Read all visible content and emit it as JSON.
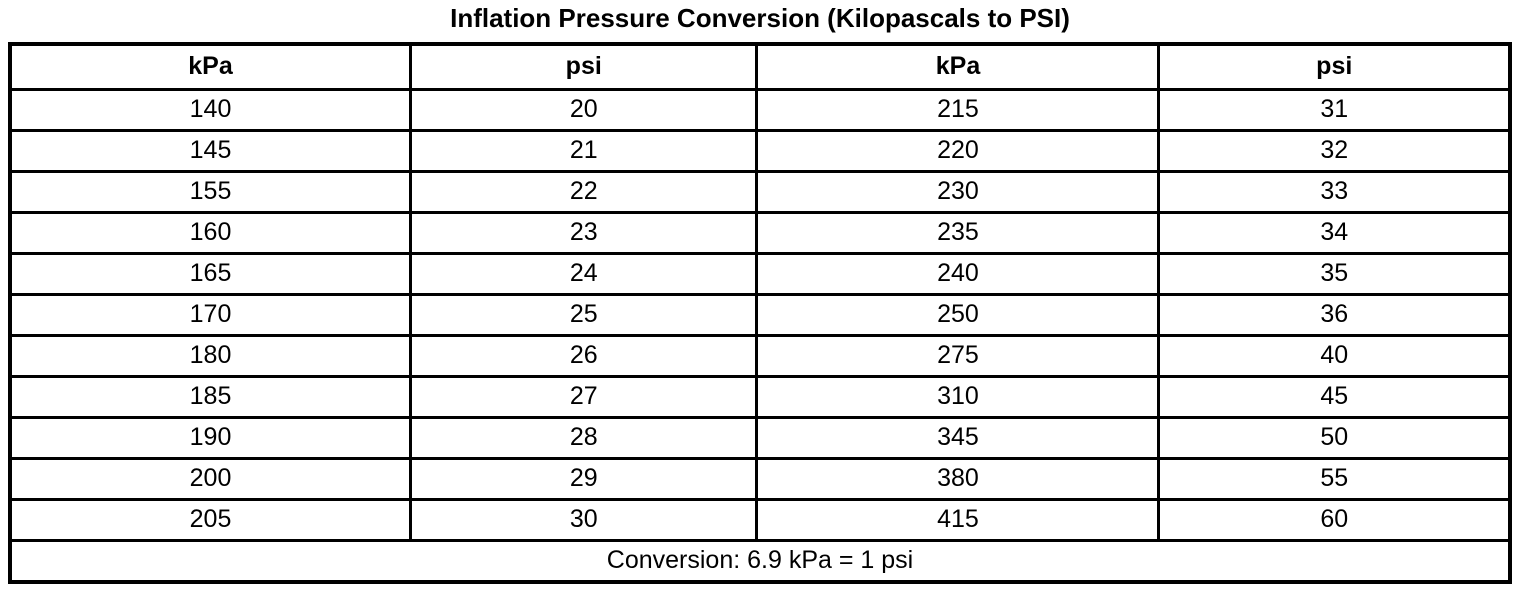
{
  "page": {
    "title": "Inflation Pressure Conversion (Kilopascals to PSI)"
  },
  "table": {
    "headers": [
      "kPa",
      "psi",
      "kPa",
      "psi"
    ],
    "rows": [
      [
        "140",
        "20",
        "215",
        "31"
      ],
      [
        "145",
        "21",
        "220",
        "32"
      ],
      [
        "155",
        "22",
        "230",
        "33"
      ],
      [
        "160",
        "23",
        "235",
        "34"
      ],
      [
        "165",
        "24",
        "240",
        "35"
      ],
      [
        "170",
        "25",
        "250",
        "36"
      ],
      [
        "180",
        "26",
        "275",
        "40"
      ],
      [
        "185",
        "27",
        "310",
        "45"
      ],
      [
        "190",
        "28",
        "345",
        "50"
      ],
      [
        "200",
        "29",
        "380",
        "55"
      ],
      [
        "205",
        "30",
        "415",
        "60"
      ]
    ],
    "footer": "Conversion: 6.9 kPa = 1 psi"
  },
  "colors": {
    "background": "#ffffff",
    "border": "#000000",
    "text": "#000000"
  }
}
